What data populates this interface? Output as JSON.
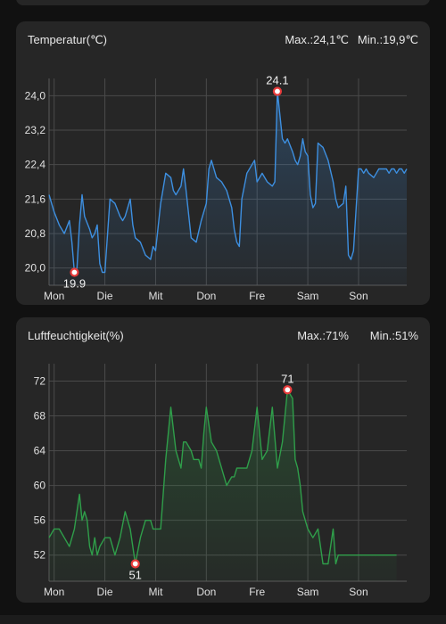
{
  "temperature": {
    "title": "Temperatur(℃)",
    "max_label": "Max.:24,1℃",
    "min_label": "Min.:19,9℃"
  },
  "humidity": {
    "title": "Luftfeuchtigkeit(%)",
    "max_label": "Max.:71%",
    "min_label": "Min.:51%"
  },
  "colors": {
    "temp_line": "#3d8fe0",
    "hum_line": "#2f9e4a",
    "marker": "#e83a3a"
  },
  "chart_data": [
    {
      "type": "line",
      "categories": [
        "Mon",
        "Die",
        "Mit",
        "Don",
        "Fre",
        "Sam",
        "Son"
      ],
      "yticks": [
        "24,0",
        "23,2",
        "22,4",
        "21,6",
        "20,8",
        "20,0"
      ],
      "ylim": [
        19.6,
        24.4
      ],
      "grid": true,
      "x_range": [
        -0.1,
        6.95
      ],
      "x": [
        -0.1,
        0.0,
        0.1,
        0.2,
        0.3,
        0.35,
        0.4,
        0.45,
        0.5,
        0.55,
        0.6,
        0.7,
        0.75,
        0.8,
        0.85,
        0.9,
        0.95,
        1.0,
        1.1,
        1.2,
        1.3,
        1.35,
        1.4,
        1.5,
        1.55,
        1.6,
        1.7,
        1.8,
        1.9,
        1.95,
        2.0,
        2.1,
        2.2,
        2.3,
        2.35,
        2.4,
        2.45,
        2.5,
        2.55,
        2.6,
        2.7,
        2.8,
        2.9,
        3.0,
        3.05,
        3.1,
        3.2,
        3.3,
        3.4,
        3.5,
        3.55,
        3.6,
        3.65,
        3.7,
        3.8,
        3.9,
        3.95,
        4.0,
        4.1,
        4.2,
        4.3,
        4.35,
        4.4,
        4.5,
        4.55,
        4.6,
        4.7,
        4.75,
        4.8,
        4.85,
        4.9,
        4.95,
        5.0,
        5.05,
        5.1,
        5.15,
        5.2,
        5.3,
        5.4,
        5.5,
        5.55,
        5.6,
        5.7,
        5.75,
        5.8,
        5.85,
        5.9,
        6.0,
        6.05,
        6.1,
        6.15,
        6.2,
        6.3,
        6.35,
        6.4,
        6.5,
        6.55,
        6.6,
        6.65,
        6.7,
        6.75,
        6.8,
        6.85,
        6.9,
        6.95
      ],
      "values": [
        21.7,
        21.3,
        21.0,
        20.8,
        21.1,
        20.6,
        19.9,
        20.0,
        21.0,
        21.7,
        21.2,
        20.9,
        20.7,
        20.8,
        21.0,
        20.1,
        19.9,
        19.9,
        21.6,
        21.5,
        21.2,
        21.1,
        21.2,
        21.6,
        21.0,
        20.7,
        20.6,
        20.3,
        20.2,
        20.5,
        20.4,
        21.5,
        22.2,
        22.1,
        21.8,
        21.7,
        21.8,
        21.9,
        22.3,
        21.8,
        20.7,
        20.6,
        21.1,
        21.5,
        22.3,
        22.5,
        22.1,
        22.0,
        21.8,
        21.4,
        20.9,
        20.6,
        20.5,
        21.6,
        22.2,
        22.4,
        22.5,
        22.0,
        22.2,
        22.0,
        21.9,
        22.0,
        24.1,
        23.0,
        22.9,
        23.0,
        22.7,
        22.5,
        22.4,
        22.6,
        23.0,
        22.7,
        22.6,
        21.7,
        21.4,
        21.5,
        22.9,
        22.8,
        22.5,
        22.0,
        21.6,
        21.4,
        21.5,
        21.9,
        20.3,
        20.2,
        20.4,
        22.3,
        22.3,
        22.2,
        22.3,
        22.2,
        22.1,
        22.2,
        22.3,
        22.3,
        22.3,
        22.2,
        22.3,
        22.3,
        22.2,
        22.3,
        22.3,
        22.2,
        22.3
      ],
      "annotations": [
        {
          "label": "24.1",
          "x": 4.4,
          "y": 24.1,
          "position": "above"
        },
        {
          "label": "19.9",
          "x": 0.4,
          "y": 19.9,
          "position": "below"
        }
      ]
    },
    {
      "type": "line",
      "categories": [
        "Mon",
        "Die",
        "Mit",
        "Don",
        "Fre",
        "Sam",
        "Son"
      ],
      "yticks": [
        "72",
        "68",
        "64",
        "60",
        "56",
        "52"
      ],
      "ylim": [
        49,
        74
      ],
      "grid": true,
      "x_range": [
        -0.1,
        6.95
      ],
      "x": [
        -0.1,
        0.0,
        0.1,
        0.2,
        0.3,
        0.4,
        0.5,
        0.55,
        0.6,
        0.65,
        0.7,
        0.75,
        0.8,
        0.85,
        0.9,
        1.0,
        1.1,
        1.2,
        1.3,
        1.4,
        1.5,
        1.6,
        1.7,
        1.75,
        1.8,
        1.9,
        1.95,
        2.0,
        2.1,
        2.2,
        2.3,
        2.4,
        2.5,
        2.55,
        2.6,
        2.7,
        2.75,
        2.8,
        2.85,
        2.9,
        2.95,
        3.0,
        3.1,
        3.2,
        3.3,
        3.4,
        3.5,
        3.55,
        3.6,
        3.65,
        3.7,
        3.8,
        3.9,
        4.0,
        4.1,
        4.2,
        4.3,
        4.4,
        4.5,
        4.6,
        4.7,
        4.75,
        4.8,
        4.85,
        4.9,
        5.0,
        5.1,
        5.2,
        5.3,
        5.4,
        5.5,
        5.55,
        5.6,
        5.7,
        5.8,
        5.9,
        6.0,
        6.1,
        6.15,
        6.2,
        6.3,
        6.4,
        6.5,
        6.55,
        6.6,
        6.65,
        6.7,
        6.75
      ],
      "values": [
        54,
        55,
        55,
        54,
        53,
        55,
        59,
        56,
        57,
        56,
        53,
        52,
        54,
        52,
        53,
        54,
        54,
        52,
        54,
        57,
        55,
        51,
        54,
        55,
        56,
        56,
        55,
        55,
        55,
        63,
        69,
        64,
        62,
        65,
        65,
        64,
        63,
        63,
        63,
        62,
        66,
        69,
        65,
        64,
        62,
        60,
        61,
        61,
        62,
        62,
        62,
        62,
        64,
        69,
        63,
        64,
        69,
        62,
        65,
        71,
        70,
        63,
        62,
        60,
        57,
        55,
        54,
        55,
        51,
        51,
        55,
        51,
        52,
        52,
        52,
        52,
        52,
        52,
        52,
        52,
        52,
        52,
        52,
        52,
        52,
        52,
        52,
        52
      ],
      "annotations": [
        {
          "label": "71",
          "x": 4.6,
          "y": 71,
          "position": "above"
        },
        {
          "label": "51",
          "x": 1.6,
          "y": 51,
          "position": "below"
        }
      ]
    }
  ]
}
